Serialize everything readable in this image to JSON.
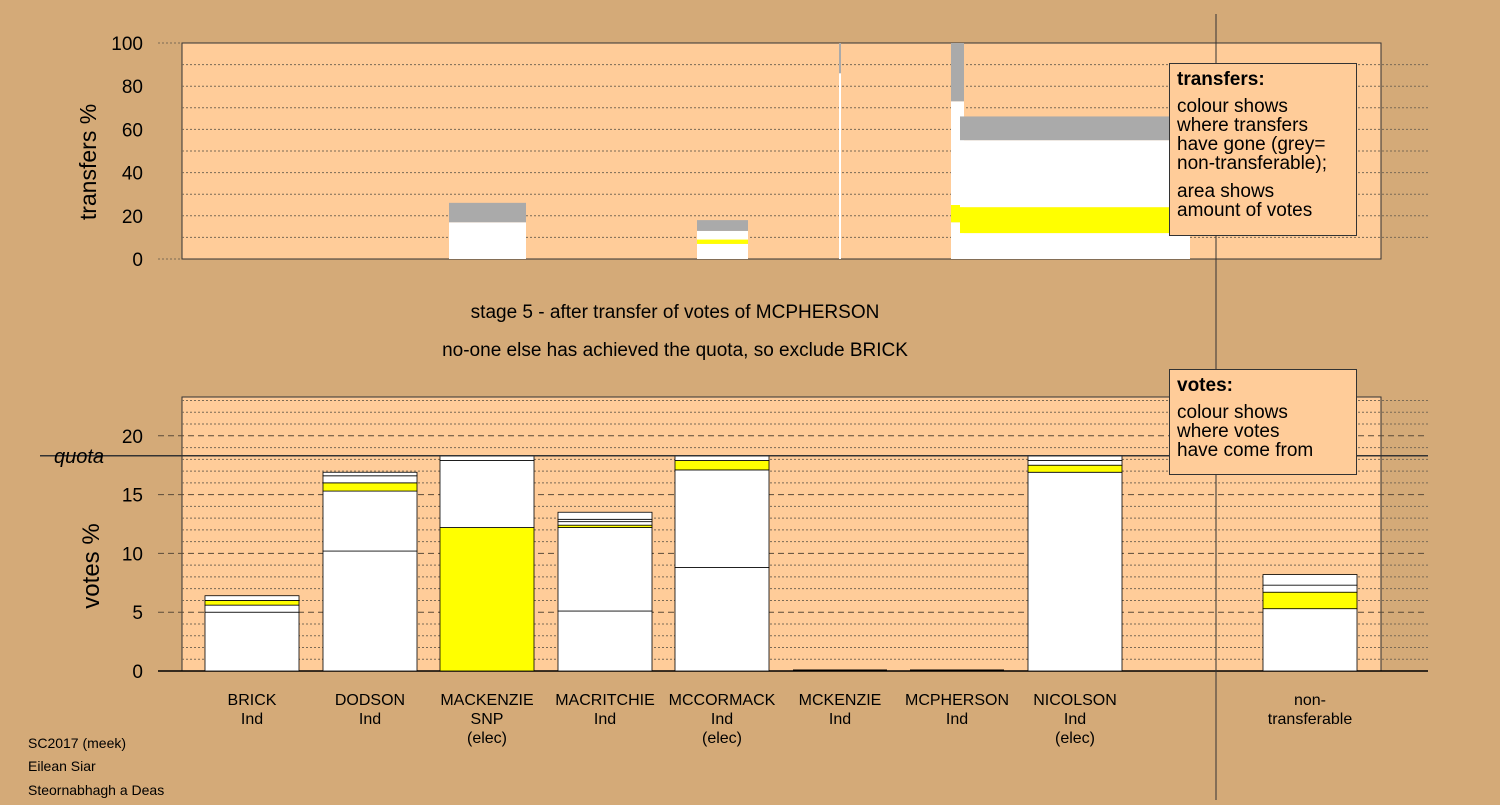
{
  "captions": {
    "stage": "stage 5 - after transfer of votes of MCPHERSON",
    "status": "no-one else has achieved the quota, so exclude BRICK"
  },
  "footer": [
    "SC2017 (meek)",
    "Eilean Siar",
    "Steornabhagh a Deas"
  ],
  "legends": {
    "transfers": {
      "title": "transfers:",
      "text1": "colour shows\nwhere transfers\nhave gone (grey=\nnon-transferable);",
      "text2": "area shows\namount of votes"
    },
    "votes": {
      "title": "votes:",
      "text1": "colour shows\nwhere votes\nhave come from"
    }
  },
  "colors": {
    "background": "#d4aa78",
    "plot_area": "#ffcc99",
    "white": "#ffffff",
    "snp_yellow": "#ffff00",
    "non_transferable_grey": "#aaaaaa"
  },
  "chart_data": [
    {
      "type": "bar",
      "ylabel": "transfers %",
      "ylim": [
        0,
        100
      ],
      "yticks": [
        "0",
        "20",
        "40",
        "60",
        "80",
        "100"
      ],
      "note": "transfer flows from excluded/elected candidates; bar width proportional to votes transferred",
      "transfers": [
        {
          "to": "BRICK",
          "segments": [
            {
              "color": "white",
              "from": 0,
              "to": 17
            },
            {
              "color": "grey",
              "from": 17,
              "to": 26
            }
          ]
        },
        {
          "to": "MACRITCHIE",
          "segments": [
            {
              "color": "white",
              "from": 0,
              "to": 7
            },
            {
              "color": "yellow",
              "from": 7,
              "to": 9
            },
            {
              "color": "white",
              "from": 9,
              "to": 13
            },
            {
              "color": "grey",
              "from": 13,
              "to": 18
            }
          ]
        },
        {
          "to": "MCKENZIE",
          "segments": [
            {
              "color": "white",
              "from": 0,
              "to": 86
            },
            {
              "color": "grey",
              "from": 86,
              "to": 100
            }
          ]
        },
        {
          "to": "MCPHERSON",
          "segments": [
            {
              "color": "white",
              "from": 0,
              "to": 17
            },
            {
              "color": "yellow",
              "from": 17,
              "to": 25
            },
            {
              "color": "white",
              "from": 25,
              "to": 73
            },
            {
              "color": "grey",
              "from": 73,
              "to": 100
            }
          ]
        },
        {
          "to": "NICOLSON",
          "segments": [
            {
              "color": "white",
              "from": 0,
              "to": 12
            },
            {
              "color": "yellow",
              "from": 12,
              "to": 24
            },
            {
              "color": "white",
              "from": 24,
              "to": 55
            },
            {
              "color": "grey",
              "from": 55,
              "to": 66
            }
          ]
        }
      ]
    },
    {
      "type": "bar",
      "ylabel": "votes %",
      "ylim": [
        0,
        20
      ],
      "yticks": [
        "0",
        "5",
        "10",
        "15",
        "20"
      ],
      "quota": 18.3,
      "quota_label": "quota",
      "candidates": [
        {
          "name": "BRICK",
          "party": "Ind",
          "status": "",
          "segments": [
            {
              "color": "white",
              "from": 0,
              "to": 5.0
            },
            {
              "color": "white",
              "from": 5.0,
              "to": 5.6
            },
            {
              "color": "yellow",
              "from": 5.6,
              "to": 6.0
            },
            {
              "color": "white",
              "from": 6.0,
              "to": 6.4
            }
          ]
        },
        {
          "name": "DODSON",
          "party": "Ind",
          "status": "",
          "segments": [
            {
              "color": "white",
              "from": 0,
              "to": 10.2
            },
            {
              "color": "white",
              "from": 10.2,
              "to": 15.3
            },
            {
              "color": "yellow",
              "from": 15.3,
              "to": 16.0
            },
            {
              "color": "white",
              "from": 16.0,
              "to": 16.6
            },
            {
              "color": "white",
              "from": 16.6,
              "to": 16.9
            }
          ]
        },
        {
          "name": "MACKENZIE",
          "party": "SNP",
          "status": "(elec)",
          "segments": [
            {
              "color": "yellow",
              "from": 0,
              "to": 12.2
            },
            {
              "color": "white",
              "from": 12.2,
              "to": 17.9
            },
            {
              "color": "white",
              "from": 17.9,
              "to": 18.3
            }
          ]
        },
        {
          "name": "MACRITCHIE",
          "party": "Ind",
          "status": "",
          "segments": [
            {
              "color": "white",
              "from": 0,
              "to": 5.1
            },
            {
              "color": "white",
              "from": 5.1,
              "to": 12.2
            },
            {
              "color": "yellow",
              "from": 12.2,
              "to": 12.4
            },
            {
              "color": "white",
              "from": 12.4,
              "to": 12.7
            },
            {
              "color": "white",
              "from": 12.7,
              "to": 12.9
            },
            {
              "color": "white",
              "from": 12.9,
              "to": 13.5
            }
          ]
        },
        {
          "name": "MCCORMACK",
          "party": "Ind",
          "status": "(elec)",
          "segments": [
            {
              "color": "white",
              "from": 0,
              "to": 8.8
            },
            {
              "color": "white",
              "from": 8.8,
              "to": 17.1
            },
            {
              "color": "yellow",
              "from": 17.1,
              "to": 17.9
            },
            {
              "color": "white",
              "from": 17.9,
              "to": 18.3
            }
          ]
        },
        {
          "name": "MCKENZIE",
          "party": "Ind",
          "status": "",
          "segments": []
        },
        {
          "name": "MCPHERSON",
          "party": "Ind",
          "status": "",
          "segments": []
        },
        {
          "name": "NICOLSON",
          "party": "Ind",
          "status": "(elec)",
          "segments": [
            {
              "color": "white",
              "from": 0,
              "to": 16.9
            },
            {
              "color": "yellow",
              "from": 16.9,
              "to": 17.5
            },
            {
              "color": "white",
              "from": 17.5,
              "to": 17.9
            },
            {
              "color": "white",
              "from": 17.9,
              "to": 18.3
            }
          ]
        },
        {
          "name": "non-",
          "party": "transferable",
          "status": "",
          "segments": [
            {
              "color": "white",
              "from": 0,
              "to": 5.3
            },
            {
              "color": "yellow",
              "from": 5.3,
              "to": 6.7
            },
            {
              "color": "white",
              "from": 6.7,
              "to": 7.3
            },
            {
              "color": "white",
              "from": 7.3,
              "to": 8.2
            }
          ]
        }
      ]
    }
  ]
}
